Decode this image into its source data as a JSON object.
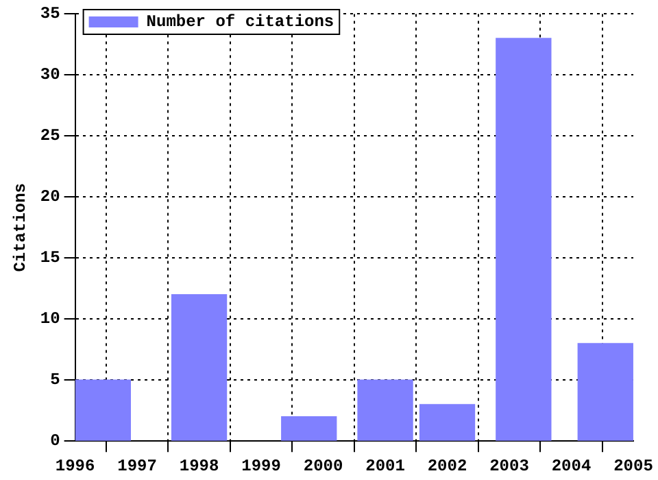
{
  "chart_data": {
    "type": "bar",
    "x": [
      1996.45,
      1998,
      1999.77,
      2001,
      2002,
      2003.23,
      2004.55
    ],
    "series": [
      {
        "name": "Number of citations",
        "color": "#8080ff",
        "values": [
          5,
          12,
          2,
          5,
          3,
          33,
          8
        ]
      }
    ],
    "ylabel": "Citations",
    "xlim": [
      1996,
      2005
    ],
    "xticks": [
      1996,
      1997,
      1998,
      1999,
      2000,
      2001,
      2002,
      2003,
      2004,
      2005
    ],
    "ylim": [
      0,
      35
    ],
    "yticks": [
      0,
      5,
      10,
      15,
      20,
      25,
      30,
      35
    ],
    "grid": true,
    "legend": "top left"
  }
}
